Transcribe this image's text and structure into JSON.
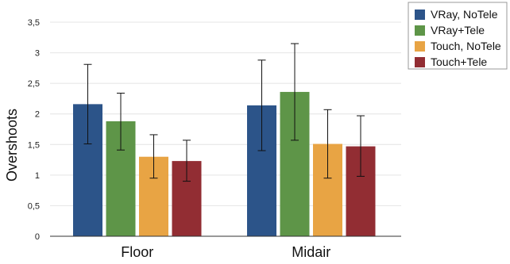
{
  "chart_data": {
    "type": "bar",
    "title": "",
    "xlabel": "",
    "ylabel": "Overshoots",
    "ylim": [
      0,
      3.5
    ],
    "yticks": [
      "0",
      "0,5",
      "1",
      "1,5",
      "2",
      "2,5",
      "3",
      "3,5"
    ],
    "ytick_values": [
      0,
      0.5,
      1,
      1.5,
      2,
      2.5,
      3,
      3.5
    ],
    "grid": true,
    "legend_position": "top-right",
    "categories": [
      "Floor",
      "Midair"
    ],
    "series": [
      {
        "name": "VRay, NoTele",
        "color": "#2c5489",
        "values": [
          2.16,
          2.14
        ],
        "err_low": [
          1.51,
          1.4
        ],
        "err_high": [
          2.81,
          2.88
        ]
      },
      {
        "name": "VRay+Tele",
        "color": "#5e9548",
        "values": [
          1.88,
          2.36
        ],
        "err_low": [
          1.41,
          1.57
        ],
        "err_high": [
          2.34,
          3.15
        ]
      },
      {
        "name": "Touch, NoTele",
        "color": "#e8a444",
        "values": [
          1.3,
          1.51
        ],
        "err_low": [
          0.95,
          0.95
        ],
        "err_high": [
          1.66,
          2.07
        ]
      },
      {
        "name": "Touch+Tele",
        "color": "#922d33",
        "values": [
          1.23,
          1.47
        ],
        "err_low": [
          0.9,
          0.98
        ],
        "err_high": [
          1.57,
          1.97
        ]
      }
    ]
  }
}
